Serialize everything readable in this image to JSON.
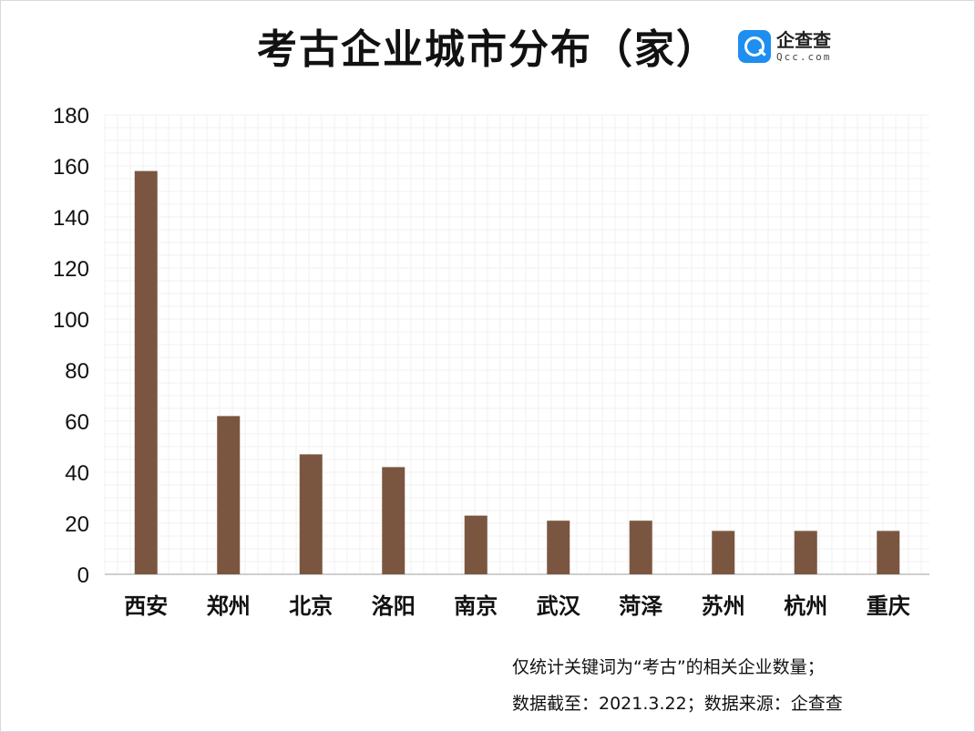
{
  "header": {
    "title": "考古企业城市分布（家）",
    "logo_cn": "企查查",
    "logo_en": "Qcc.com"
  },
  "notes": {
    "line1": "仅统计关键词为“考古”的相关企业数量；",
    "line2": "数据截至：2021.3.22；数据来源：企查查"
  },
  "chart_data": {
    "type": "bar",
    "title": "考古企业城市分布（家）",
    "categories": [
      "西安",
      "郑州",
      "北京",
      "洛阳",
      "南京",
      "武汉",
      "菏泽",
      "苏州",
      "杭州",
      "重庆"
    ],
    "values": [
      158,
      62,
      47,
      42,
      23,
      21,
      21,
      17,
      17,
      17
    ],
    "ylim": [
      0,
      180
    ],
    "yticks": [
      0,
      20,
      40,
      60,
      80,
      100,
      120,
      140,
      160,
      180
    ],
    "grid": true,
    "bar_color": "#7a5640",
    "xlabel": "",
    "ylabel": ""
  }
}
